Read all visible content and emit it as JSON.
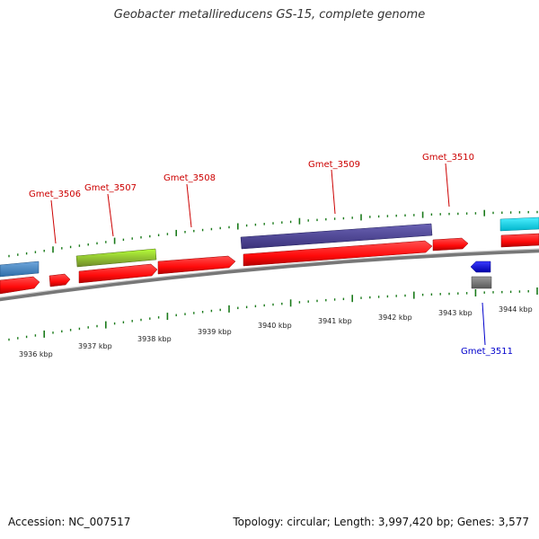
{
  "title": "Geobacter metallireducens GS-15, complete genome",
  "accession_text": "Accession: NC_007517",
  "summary_text": "Topology: circular; Length: 3,997,420 bp; Genes: 3,577",
  "colors": {
    "forward_label": "#cc0000",
    "reverse_label": "#0000cc",
    "tick": "#1a7a1a",
    "backbone": "#888888",
    "cds": "#ff1a1a"
  },
  "scale_labels": [
    "3936 kbp",
    "3937 kbp",
    "3938 kbp",
    "3939 kbp",
    "3940 kbp",
    "3941 kbp",
    "3942 kbp",
    "3943 kbp",
    "3944 kbp"
  ],
  "gene_labels": [
    {
      "name": "Gmet_3506",
      "strand": "forward"
    },
    {
      "name": "Gmet_3507",
      "strand": "forward"
    },
    {
      "name": "Gmet_3508",
      "strand": "forward"
    },
    {
      "name": "Gmet_3509",
      "strand": "forward"
    },
    {
      "name": "Gmet_3510",
      "strand": "forward"
    },
    {
      "name": "Gmet_3511",
      "strand": "reverse"
    }
  ]
}
